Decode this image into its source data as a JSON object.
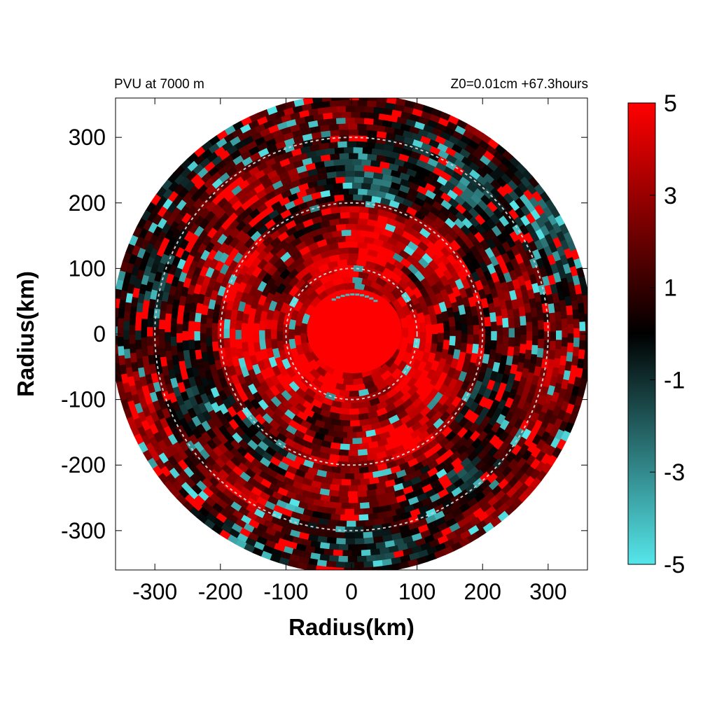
{
  "chart_data": {
    "type": "heatmap",
    "title_left": "PVU at  7000 m",
    "title_right": "Z0=0.01cm  +67.3hours",
    "xlabel": "Radius(km)",
    "ylabel": "Radius(km)",
    "xlim": [
      -360,
      360
    ],
    "ylim": [
      -360,
      360
    ],
    "xticks": [
      -300,
      -200,
      -100,
      0,
      100,
      200,
      300
    ],
    "yticks": [
      300,
      200,
      100,
      0,
      -100,
      -200,
      -300
    ],
    "domain_radius_km": 360,
    "range_rings_km": [
      100,
      200,
      300
    ],
    "colorbar": {
      "min": -5,
      "max": 5,
      "tick_values": [
        5,
        3,
        1,
        -1,
        -3,
        -5
      ],
      "tick_labels": [
        "5",
        "3",
        "1",
        "-1",
        "-3",
        "-5"
      ],
      "colors": [
        "#55e6ea",
        "#000000",
        "#ff0000"
      ]
    },
    "field_description_levels": [
      {
        "r_max_km": 60,
        "typical_pvu": 5
      },
      {
        "r_max_km": 200,
        "typical_pvu": 4
      },
      {
        "r_max_km": 360,
        "typical_pvu": 1.5
      }
    ]
  }
}
